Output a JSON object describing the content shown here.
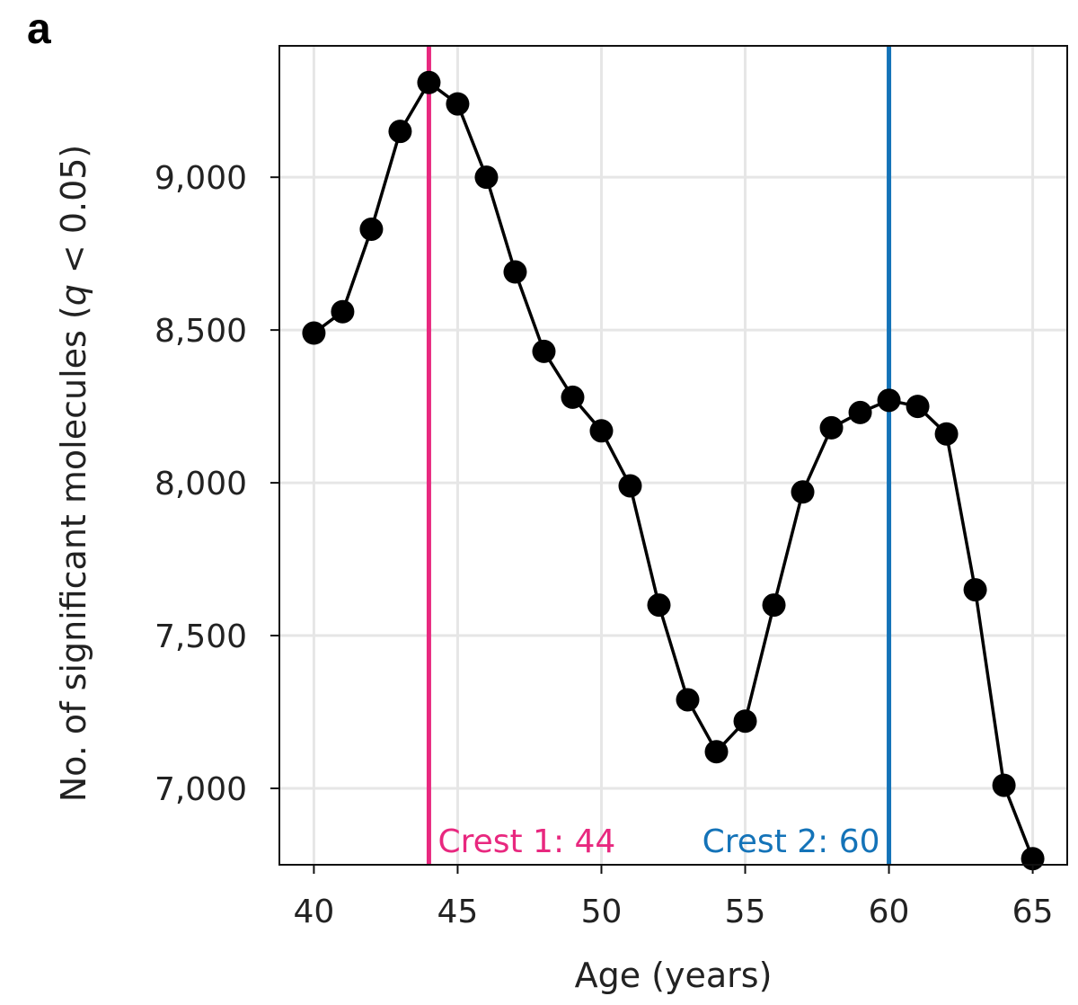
{
  "panel_label": "a",
  "chart_data": {
    "type": "line",
    "title": "",
    "xlabel": "Age (years)",
    "ylabel_parts": {
      "prefix": "No. of significant molecules (",
      "italic": "q",
      "suffix": " < 0.05)"
    },
    "xlim": [
      38.8,
      66.2
    ],
    "ylim": [
      6750,
      9430
    ],
    "x_ticks": [
      40,
      45,
      50,
      55,
      60,
      65
    ],
    "x_tick_labels": [
      "40",
      "45",
      "50",
      "55",
      "60",
      "65"
    ],
    "y_ticks": [
      7000,
      7500,
      8000,
      8500,
      9000
    ],
    "y_tick_labels": [
      "7,000",
      "7,500",
      "8,000",
      "8,500",
      "9,000"
    ],
    "grid": true,
    "series": [
      {
        "x": [
          40,
          41,
          42,
          43,
          44,
          45,
          46,
          47,
          48,
          49,
          50,
          51,
          52,
          53,
          54,
          55,
          56,
          57,
          58,
          59,
          60,
          61,
          62,
          63,
          64,
          65
        ],
        "y": [
          8490,
          8560,
          8830,
          9150,
          9310,
          9240,
          9000,
          8690,
          8430,
          8280,
          8170,
          7990,
          7600,
          7290,
          7120,
          7220,
          7600,
          7970,
          8180,
          8230,
          8270,
          8250,
          8160,
          7650,
          7010,
          6770
        ],
        "color": "#000000"
      }
    ],
    "annotations": [
      {
        "x": 44,
        "label": "Crest 1: 44",
        "color": "#e8287f",
        "label_side": "right"
      },
      {
        "x": 60,
        "label": "Crest 2: 60",
        "color": "#1473b8",
        "label_side": "left"
      }
    ]
  }
}
